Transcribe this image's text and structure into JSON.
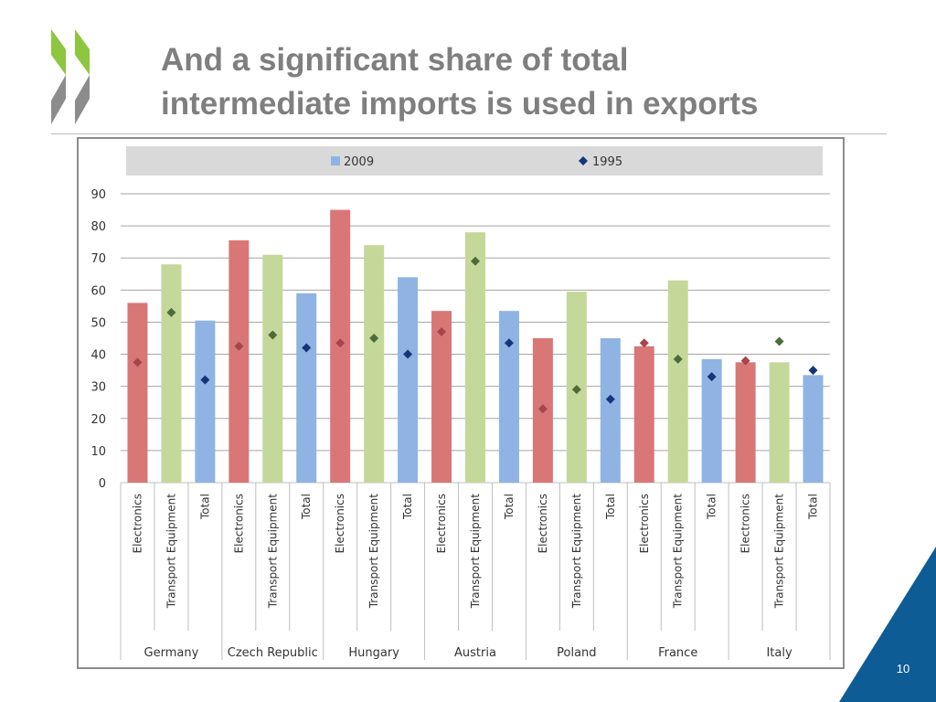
{
  "slide": {
    "title_line1": "And a significant share of total",
    "title_line2": "intermediate imports is used in exports",
    "page_number": "10"
  },
  "colors": {
    "title": "#7f7f7f",
    "logo_green": "#8dc63f",
    "logo_gray": "#8c8c8c",
    "corner_blue": "#0e5c96",
    "bar_electronics": "#d97777",
    "bar_transport": "#c4d89a",
    "bar_total": "#8fb4e3",
    "marker_electronics": "#a6464c",
    "marker_transport": "#4e6b3a",
    "marker_total": "#15357a"
  },
  "chart_data": {
    "type": "bar",
    "ylim": [
      0,
      90
    ],
    "yticks": [
      0,
      10,
      20,
      30,
      40,
      50,
      60,
      70,
      80,
      90
    ],
    "grid": true,
    "legend_position": "top",
    "legend": [
      {
        "label": "2009",
        "kind": "bar"
      },
      {
        "label": "1995",
        "kind": "marker"
      }
    ],
    "countries": [
      "Germany",
      "Czech Republic",
      "Hungary",
      "Austria",
      "Poland",
      "France",
      "Italy"
    ],
    "categories": [
      "Electronics",
      "Transport Equipment",
      "Total"
    ],
    "series": [
      {
        "name": "2009",
        "values": [
          [
            56,
            68,
            50.5
          ],
          [
            75.5,
            71,
            59
          ],
          [
            85,
            74,
            64
          ],
          [
            53.5,
            78,
            53.5
          ],
          [
            45,
            59.5,
            45
          ],
          [
            42.5,
            63,
            38.5
          ],
          [
            37.5,
            37.5,
            33.5
          ]
        ]
      },
      {
        "name": "1995",
        "values": [
          [
            37.5,
            53,
            32
          ],
          [
            42.5,
            46,
            42
          ],
          [
            43.5,
            45,
            40
          ],
          [
            47,
            69,
            43.5
          ],
          [
            23,
            29,
            26
          ],
          [
            43.5,
            38.5,
            33
          ],
          [
            38,
            44,
            35
          ]
        ]
      }
    ]
  }
}
